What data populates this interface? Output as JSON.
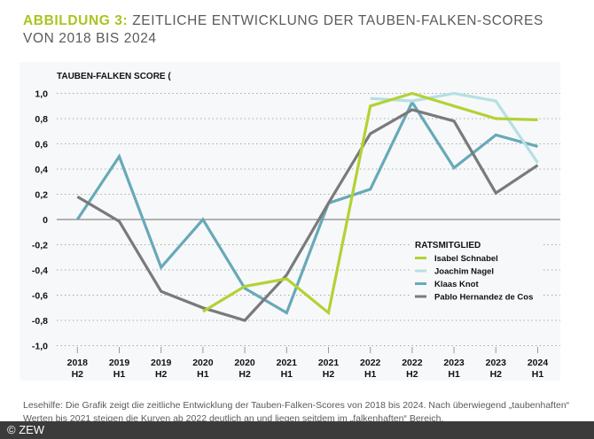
{
  "title": {
    "prefix": "ABBILDUNG 3:",
    "text": "ZEITLICHE ENTWICKLUNG DER TAUBEN-FALKEN-SCORES VON 2018 BIS 2024"
  },
  "chart_data": {
    "type": "line",
    "ylabel": "TAUBEN-FALKEN SCORE (",
    "ylim": [
      -1.0,
      1.0
    ],
    "yticks": [
      "1,0",
      "0,8",
      "0,6",
      "0,4",
      "0,2",
      "0",
      "-0,2",
      "-0,4",
      "-0,6",
      "-0,8",
      "-1,0"
    ],
    "ytick_values": [
      1.0,
      0.8,
      0.6,
      0.4,
      0.2,
      0,
      -0.2,
      -0.4,
      -0.6,
      -0.8,
      -1.0
    ],
    "categories": [
      [
        "2018",
        "H2"
      ],
      [
        "2019",
        "H1"
      ],
      [
        "2019",
        "H2"
      ],
      [
        "2020",
        "H1"
      ],
      [
        "2020",
        "H2"
      ],
      [
        "2021",
        "H1"
      ],
      [
        "2021",
        "H2"
      ],
      [
        "2022",
        "H1"
      ],
      [
        "2022",
        "H2"
      ],
      [
        "2023",
        "H1"
      ],
      [
        "2023",
        "H2"
      ],
      [
        "2024",
        "H1"
      ]
    ],
    "grid": true,
    "legend": {
      "title": "RATSMITGLIED",
      "placement": "right"
    },
    "series": [
      {
        "name": "Isabel Schnabel",
        "color": "#b2d235",
        "values": [
          null,
          null,
          null,
          -0.73,
          -0.53,
          -0.47,
          -0.74,
          0.9,
          1.0,
          0.9,
          0.8,
          0.79
        ]
      },
      {
        "name": "Joachim Nagel",
        "color": "#b5e0e4",
        "values": [
          null,
          null,
          null,
          null,
          null,
          null,
          null,
          0.96,
          0.94,
          1.0,
          0.94,
          0.45
        ]
      },
      {
        "name": "Klaas Knot",
        "color": "#67a9b9",
        "values": [
          0.0,
          0.5,
          -0.38,
          0.0,
          -0.545,
          -0.74,
          0.13,
          0.24,
          0.93,
          0.41,
          0.67,
          0.58
        ]
      },
      {
        "name": "Pablo Hernandez de Cos",
        "color": "#7a7a7a",
        "values": [
          0.18,
          -0.015,
          -0.57,
          -0.7,
          -0.8,
          -0.44,
          0.13,
          0.68,
          0.87,
          0.78,
          0.21,
          0.43
        ]
      }
    ]
  },
  "caption": "Lesehilfe: Die Grafik zeigt die zeitliche Entwicklung der Tauben-Falken-Scores von 2018 bis 2024. Nach überwiegend „tauben­haften“ Werten bis 2021 steigen die Kurven ab 2022 deutlich an und liegen seitdem im „falkenhaften“ Bereich.",
  "footer": "© ZEW"
}
